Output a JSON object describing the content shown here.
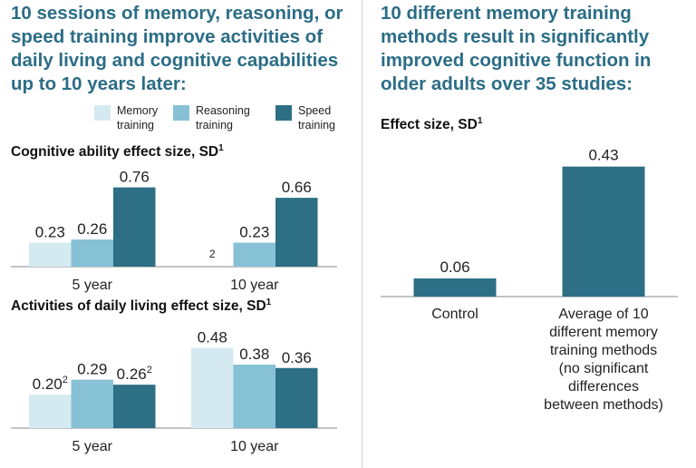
{
  "left_title": "10 sessions of memory, reasoning, or speed training improve activities of daily living and cognitive capabilities up to 10 years later:",
  "right_title": "10 different memory training methods result in significantly improved cognitive function in older adults over 35 studies:",
  "legend": [
    {
      "label": "Memory\ntraining",
      "color": "#d5e9f1"
    },
    {
      "label": "Reasoning\ntraining",
      "color": "#86c1d6"
    },
    {
      "label": "Speed\ntraining",
      "color": "#2d6f84"
    }
  ],
  "footnote_mark": "1",
  "chart_data": [
    {
      "type": "bar",
      "title": "Cognitive ability effect size, SD",
      "categories": [
        "5 year",
        "10 year"
      ],
      "series": [
        {
          "name": "Memory training",
          "values": [
            0.23,
            null
          ],
          "labels": [
            "0.23",
            "2"
          ]
        },
        {
          "name": "Reasoning training",
          "values": [
            0.26,
            0.23
          ],
          "labels": [
            "0.26",
            "0.23"
          ]
        },
        {
          "name": "Speed training",
          "values": [
            0.76,
            0.66
          ],
          "labels": [
            "0.76",
            "0.66"
          ]
        }
      ],
      "ylim": [
        0,
        0.8
      ]
    },
    {
      "type": "bar",
      "title": "Activities of daily living effect size, SD",
      "categories": [
        "5 year",
        "10 year"
      ],
      "series": [
        {
          "name": "Memory training",
          "values": [
            0.2,
            0.48
          ],
          "labels": [
            "0.20",
            "0.48"
          ],
          "sups": [
            "2",
            ""
          ]
        },
        {
          "name": "Reasoning training",
          "values": [
            0.29,
            0.38
          ],
          "labels": [
            "0.29",
            "0.38"
          ],
          "sups": [
            "",
            ""
          ]
        },
        {
          "name": "Speed training",
          "values": [
            0.26,
            0.36
          ],
          "labels": [
            "0.26",
            "0.36"
          ],
          "sups": [
            "2",
            ""
          ]
        }
      ],
      "ylim": [
        0,
        0.5
      ]
    },
    {
      "type": "bar",
      "title": "Effect size, SD",
      "categories": [
        "Control",
        "Average of 10 different memory training methods (no significant differences between methods)"
      ],
      "category_lines": [
        [
          "Control"
        ],
        [
          "Average of 10",
          "different memory",
          "training methods",
          "(no significant",
          "differences",
          "between methods)"
        ]
      ],
      "values": [
        0.06,
        0.43
      ],
      "labels": [
        "0.06",
        "0.43"
      ],
      "color": "#2d6f84",
      "ylim": [
        0,
        0.45
      ]
    }
  ]
}
